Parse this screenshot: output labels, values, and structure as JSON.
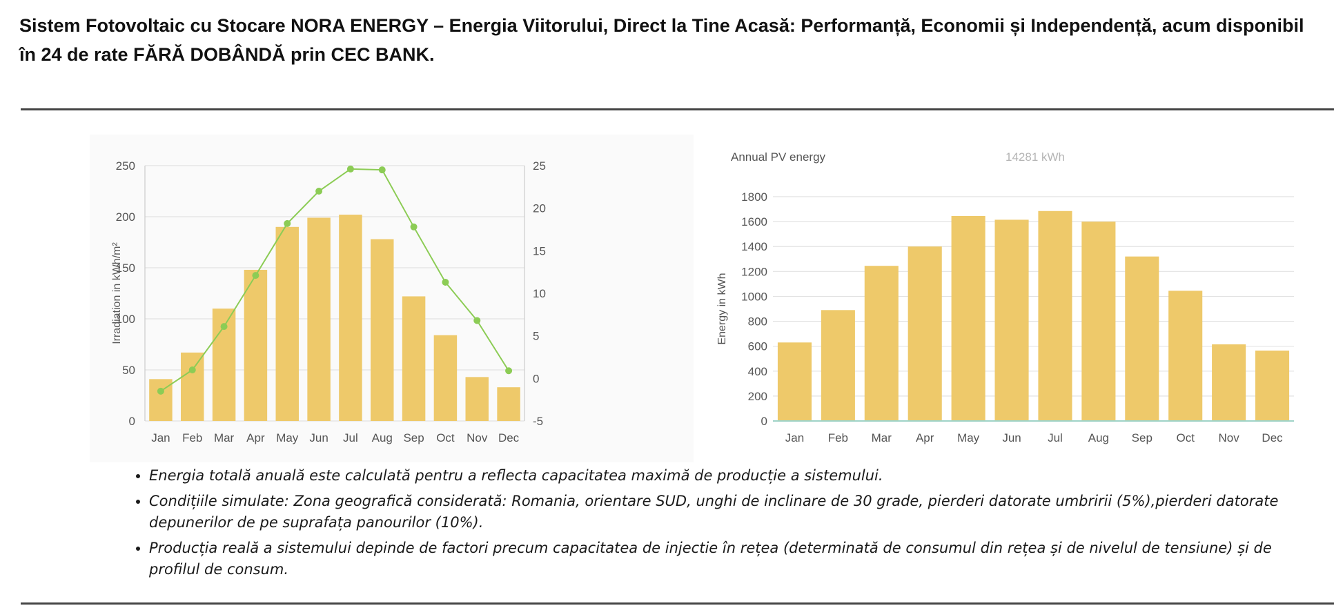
{
  "page": {
    "title": "Sistem Fotovoltaic cu Stocare NORA ENERGY – Energia Viitorului, Direct la Tine Acasă: Performanță, Economii și Independență, acum disponibil în 24 de rate FĂRĂ DOBÂNDĂ prin CEC BANK."
  },
  "notes": [
    "Energia totală anuală este calculată pentru a reflecta capacitatea maximă de producție a sistemului.",
    "Condițiile simulate: Zona geografică considerată: Romania, orientare SUD, unghi de inclinare de 30 grade, pierderi datorate umbririi (5%),pierderi datorate depunerilor de pe suprafața panourilor (10%).",
    "Producția reală a sistemului depinde de factori precum capacitatea de injectie în rețea (determinată de consumul din rețea și de nivelul de tensiune) și de profilul de consum."
  ],
  "colors": {
    "bar": "#eec96a",
    "line": "#8ccc55",
    "grid": "#e2e2e2",
    "axis_text": "#555555",
    "rule": "#444444"
  },
  "chart_data": [
    {
      "type": "bar",
      "title": "",
      "categories": [
        "Jan",
        "Feb",
        "Mar",
        "Apr",
        "May",
        "Jun",
        "Jul",
        "Aug",
        "Sep",
        "Oct",
        "Nov",
        "Dec"
      ],
      "series": [
        {
          "name": "",
          "type": "bar",
          "axis": "left",
          "values": [
            41,
            67,
            110,
            148,
            190,
            199,
            202,
            178,
            122,
            84,
            43,
            33
          ]
        },
        {
          "name": "",
          "type": "line",
          "axis": "right",
          "values": [
            -1.5,
            1.0,
            6.1,
            12.1,
            18.2,
            22.0,
            24.6,
            24.5,
            17.8,
            11.3,
            6.8,
            0.9
          ]
        }
      ],
      "xlabel": "",
      "ylabel": "Irradiation in kWh/m²",
      "ylim": [
        0,
        250
      ],
      "yticks": [
        0,
        50,
        100,
        150,
        200,
        250
      ],
      "y2label": "",
      "y2lim": [
        -5,
        25
      ],
      "y2ticks": [
        -5,
        0,
        5,
        10,
        15,
        20,
        25
      ],
      "grid": true,
      "legend": "none"
    },
    {
      "type": "bar",
      "title": "Annual PV energy",
      "summary_value": "14281 kWh",
      "categories": [
        "Jan",
        "Feb",
        "Mar",
        "Apr",
        "May",
        "Jun",
        "Jul",
        "Aug",
        "Sep",
        "Oct",
        "Nov",
        "Dec"
      ],
      "series": [
        {
          "name": "",
          "values": [
            630,
            890,
            1245,
            1400,
            1645,
            1615,
            1685,
            1600,
            1320,
            1045,
            615,
            565
          ]
        }
      ],
      "xlabel": "",
      "ylabel": "Energy in kWh",
      "ylim": [
        0,
        1800
      ],
      "yticks": [
        0,
        200,
        400,
        600,
        800,
        1000,
        1200,
        1400,
        1600,
        1800
      ],
      "grid": true,
      "legend": "none"
    }
  ]
}
